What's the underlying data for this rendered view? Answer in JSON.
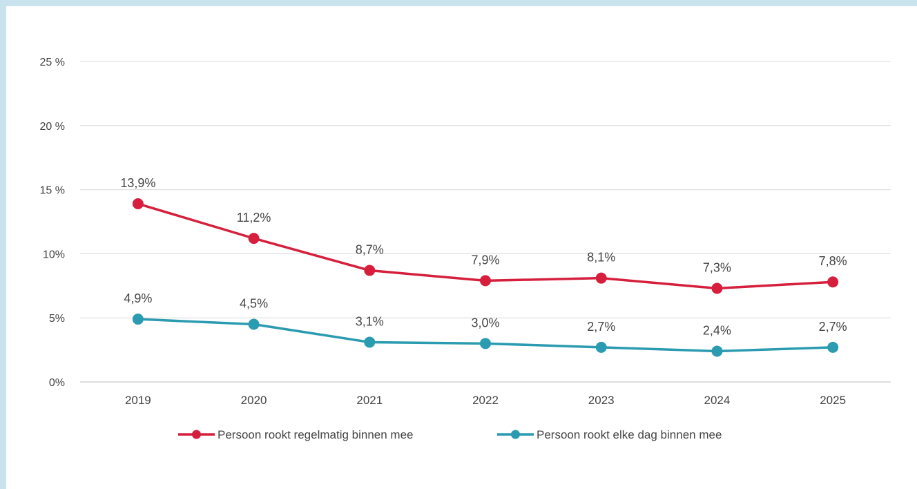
{
  "chart_data": {
    "type": "line",
    "categories": [
      "2019",
      "2020",
      "2021",
      "2022",
      "2023",
      "2024",
      "2025"
    ],
    "ylim": [
      0,
      25
    ],
    "yticks": [
      {
        "value": 0,
        "label": "0%"
      },
      {
        "value": 5,
        "label": "5%"
      },
      {
        "value": 10,
        "label": "10%"
      },
      {
        "value": 15,
        "label": "15 %"
      },
      {
        "value": 20,
        "label": "20 %"
      },
      {
        "value": 25,
        "label": "25 %"
      }
    ],
    "grid": true,
    "legend_position": "bottom",
    "series": [
      {
        "name": "Persoon rookt regelmatig binnen mee",
        "color": "#d51f3c",
        "values": [
          13.9,
          11.2,
          8.7,
          7.9,
          8.1,
          7.3,
          7.8
        ],
        "labels": [
          "13,9%",
          "11,2%",
          "8,7%",
          "7,9%",
          "8,1%",
          "7,3%",
          "7,8%"
        ]
      },
      {
        "name": "Persoon rookt elke dag binnen mee",
        "color": "#2a9bb0",
        "values": [
          4.9,
          4.5,
          3.1,
          3.0,
          2.7,
          2.4,
          2.7
        ],
        "labels": [
          "4,9%",
          "4,5%",
          "3,1%",
          "3,0%",
          "2,7%",
          "2,4%",
          "2,7%"
        ]
      }
    ]
  }
}
